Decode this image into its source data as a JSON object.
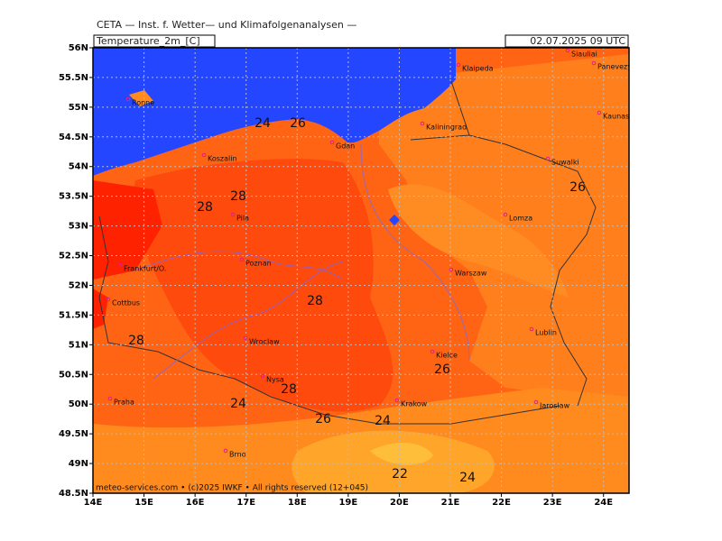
{
  "map": {
    "header": "CETA — Inst. f. Wetter— und Klimafolgenanalysen —",
    "variable": "Temperature_2m_[C]",
    "valid_time": "02.07.2025 09 UTC",
    "footer": "meteo-services.com • (c)2025 IWKF • All rights reserved (12+045)",
    "lat_ticks": [
      {
        "value": 56,
        "label": "56N"
      },
      {
        "value": 55.5,
        "label": "55.5N"
      },
      {
        "value": 55,
        "label": "55N"
      },
      {
        "value": 54.5,
        "label": "54.5N"
      },
      {
        "value": 54,
        "label": "54N"
      },
      {
        "value": 53.5,
        "label": "53.5N"
      },
      {
        "value": 53,
        "label": "53N"
      },
      {
        "value": 52.5,
        "label": "52.5N"
      },
      {
        "value": 52,
        "label": "52N"
      },
      {
        "value": 51.5,
        "label": "51.5N"
      },
      {
        "value": 51,
        "label": "51N"
      },
      {
        "value": 50.5,
        "label": "50.5N"
      },
      {
        "value": 50,
        "label": "50N"
      },
      {
        "value": 49.5,
        "label": "49.5N"
      },
      {
        "value": 49,
        "label": "49N"
      },
      {
        "value": 48.5,
        "label": "48.5N"
      }
    ],
    "lon_ticks": [
      {
        "value": 14,
        "label": "14E"
      },
      {
        "value": 15,
        "label": "15E"
      },
      {
        "value": 16,
        "label": "16E"
      },
      {
        "value": 17,
        "label": "17E"
      },
      {
        "value": 18,
        "label": "18E"
      },
      {
        "value": 19,
        "label": "19E"
      },
      {
        "value": 20,
        "label": "20E"
      },
      {
        "value": 21,
        "label": "21E"
      },
      {
        "value": 22,
        "label": "22E"
      },
      {
        "value": 23,
        "label": "23E"
      },
      {
        "value": 24,
        "label": "24E"
      }
    ],
    "lat_range": [
      48.5,
      56
    ],
    "lon_range": [
      14,
      24.5
    ],
    "cities": [
      "Siauliai",
      "Panevezys",
      "Klaipeda",
      "Kaunas",
      "Kaliningrad",
      "Gdan",
      "Ronne",
      "Koszalin",
      "Suwalki",
      "Lomza",
      "Pila",
      "Poznan",
      "Warszaw",
      "Frankfurt/O.",
      "Cottbus",
      "Lublin",
      "Wroclaw",
      "Kielce",
      "Nysa",
      "Krakow",
      "Jaroslaw",
      "Praha",
      "Brno"
    ],
    "contour_labels": [
      24,
      26,
      28,
      28,
      28,
      28,
      26,
      28,
      24,
      24,
      26,
      22,
      24,
      26
    ]
  }
}
